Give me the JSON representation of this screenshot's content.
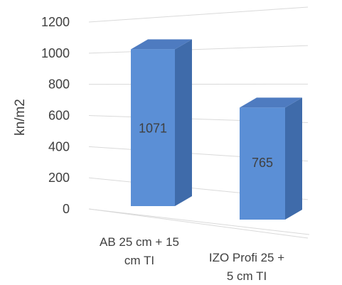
{
  "chart_data": {
    "type": "bar",
    "categories": [
      "AB 25 cm + 15 cm TI",
      "IZO Profi 25 + 5 cm TI"
    ],
    "category_lines": [
      [
        "AB 25 cm + 15",
        "cm TI"
      ],
      [
        "IZO Profi 25 +",
        "5 cm TI"
      ]
    ],
    "values": [
      1071,
      765
    ],
    "data_labels": [
      "1071",
      "765"
    ],
    "title": "",
    "xlabel": "",
    "ylabel": "kn/m2",
    "ylim": [
      0,
      1200
    ],
    "yticks": [
      0,
      200,
      400,
      600,
      800,
      1000,
      1200
    ],
    "grid": true,
    "three_d": true,
    "colors": {
      "bar_front": "#5B8FD6",
      "bar_side": "#3F6BAA",
      "bar_top": "#4E7BC0",
      "grid": "#D9D9D9",
      "text": "#404040"
    }
  }
}
